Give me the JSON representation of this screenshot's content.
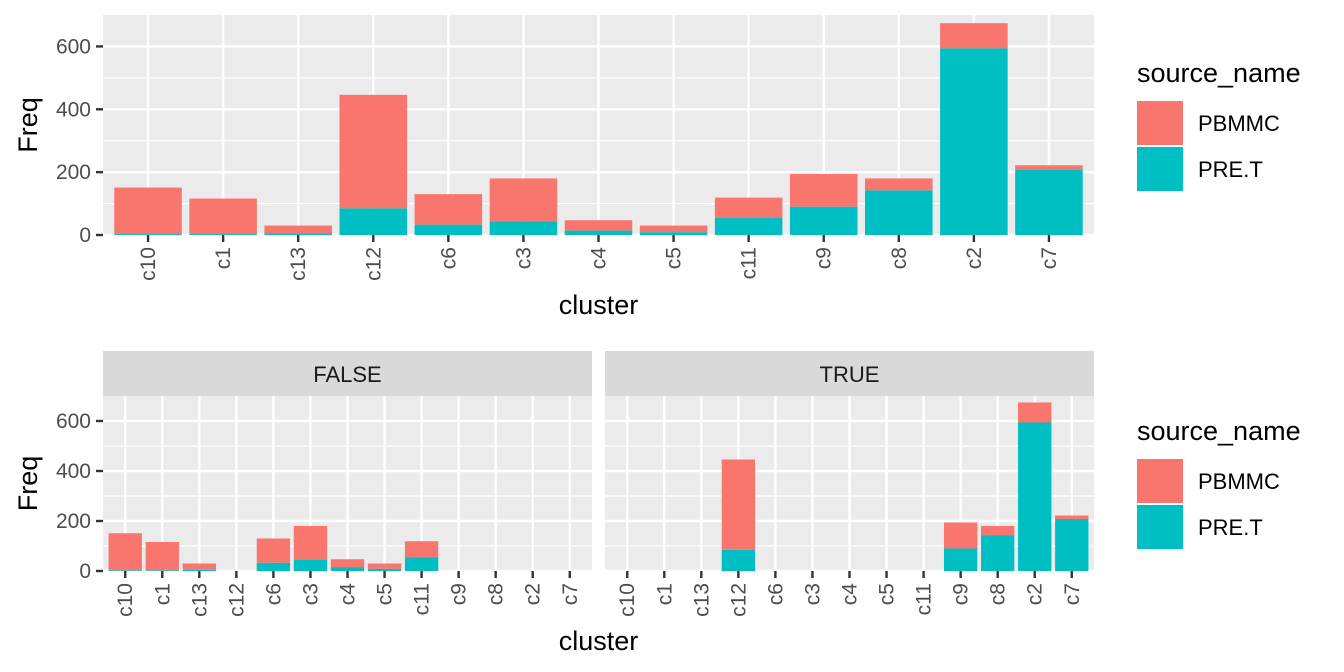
{
  "colors": {
    "PBMMC": "#F8766D",
    "PRE.T": "#00BFC4",
    "panel_bg": "#EBEBEB",
    "grid": "#FFFFFF",
    "strip_bg": "#D9D9D9",
    "tick": "#333333"
  },
  "chart_data": [
    {
      "type": "bar",
      "stacked": true,
      "title": "",
      "xlabel": "cluster",
      "ylabel": "Freq",
      "ylim": [
        0,
        700
      ],
      "yticks": [
        0,
        200,
        400,
        600
      ],
      "categories": [
        "c10",
        "c1",
        "c13",
        "c12",
        "c6",
        "c3",
        "c4",
        "c5",
        "c11",
        "c9",
        "c8",
        "c2",
        "c7"
      ],
      "series": [
        {
          "name": "PRE.T",
          "values": [
            3,
            3,
            5,
            85,
            33,
            44,
            14,
            9,
            54,
            90,
            142,
            594,
            208
          ]
        },
        {
          "name": "PBMMC",
          "values": [
            148,
            113,
            25,
            361,
            97,
            136,
            33,
            21,
            65,
            104,
            38,
            80,
            14
          ]
        }
      ],
      "legend": {
        "title": "source_name",
        "position": "right",
        "items": [
          "PBMMC",
          "PRE.T"
        ]
      },
      "grid": true
    },
    {
      "type": "bar",
      "stacked": true,
      "faceted": true,
      "title": "",
      "xlabel": "cluster",
      "ylabel": "Freq",
      "ylim": [
        0,
        700
      ],
      "yticks": [
        0,
        200,
        400,
        600
      ],
      "categories": [
        "c10",
        "c1",
        "c13",
        "c12",
        "c6",
        "c3",
        "c4",
        "c5",
        "c11",
        "c9",
        "c8",
        "c2",
        "c7"
      ],
      "facets": [
        {
          "label": "FALSE",
          "series": [
            {
              "name": "PRE.T",
              "values": [
                3,
                3,
                5,
                0,
                33,
                44,
                14,
                9,
                54,
                0,
                0,
                0,
                0
              ]
            },
            {
              "name": "PBMMC",
              "values": [
                148,
                113,
                25,
                0,
                97,
                136,
                33,
                21,
                65,
                0,
                0,
                0,
                0
              ]
            }
          ]
        },
        {
          "label": "TRUE",
          "series": [
            {
              "name": "PRE.T",
              "values": [
                0,
                0,
                0,
                85,
                0,
                0,
                0,
                0,
                0,
                90,
                142,
                594,
                208
              ]
            },
            {
              "name": "PBMMC",
              "values": [
                0,
                0,
                0,
                361,
                0,
                0,
                0,
                0,
                0,
                104,
                38,
                80,
                14
              ]
            }
          ]
        }
      ],
      "legend": {
        "title": "source_name",
        "position": "right",
        "items": [
          "PBMMC",
          "PRE.T"
        ]
      },
      "grid": true
    }
  ]
}
